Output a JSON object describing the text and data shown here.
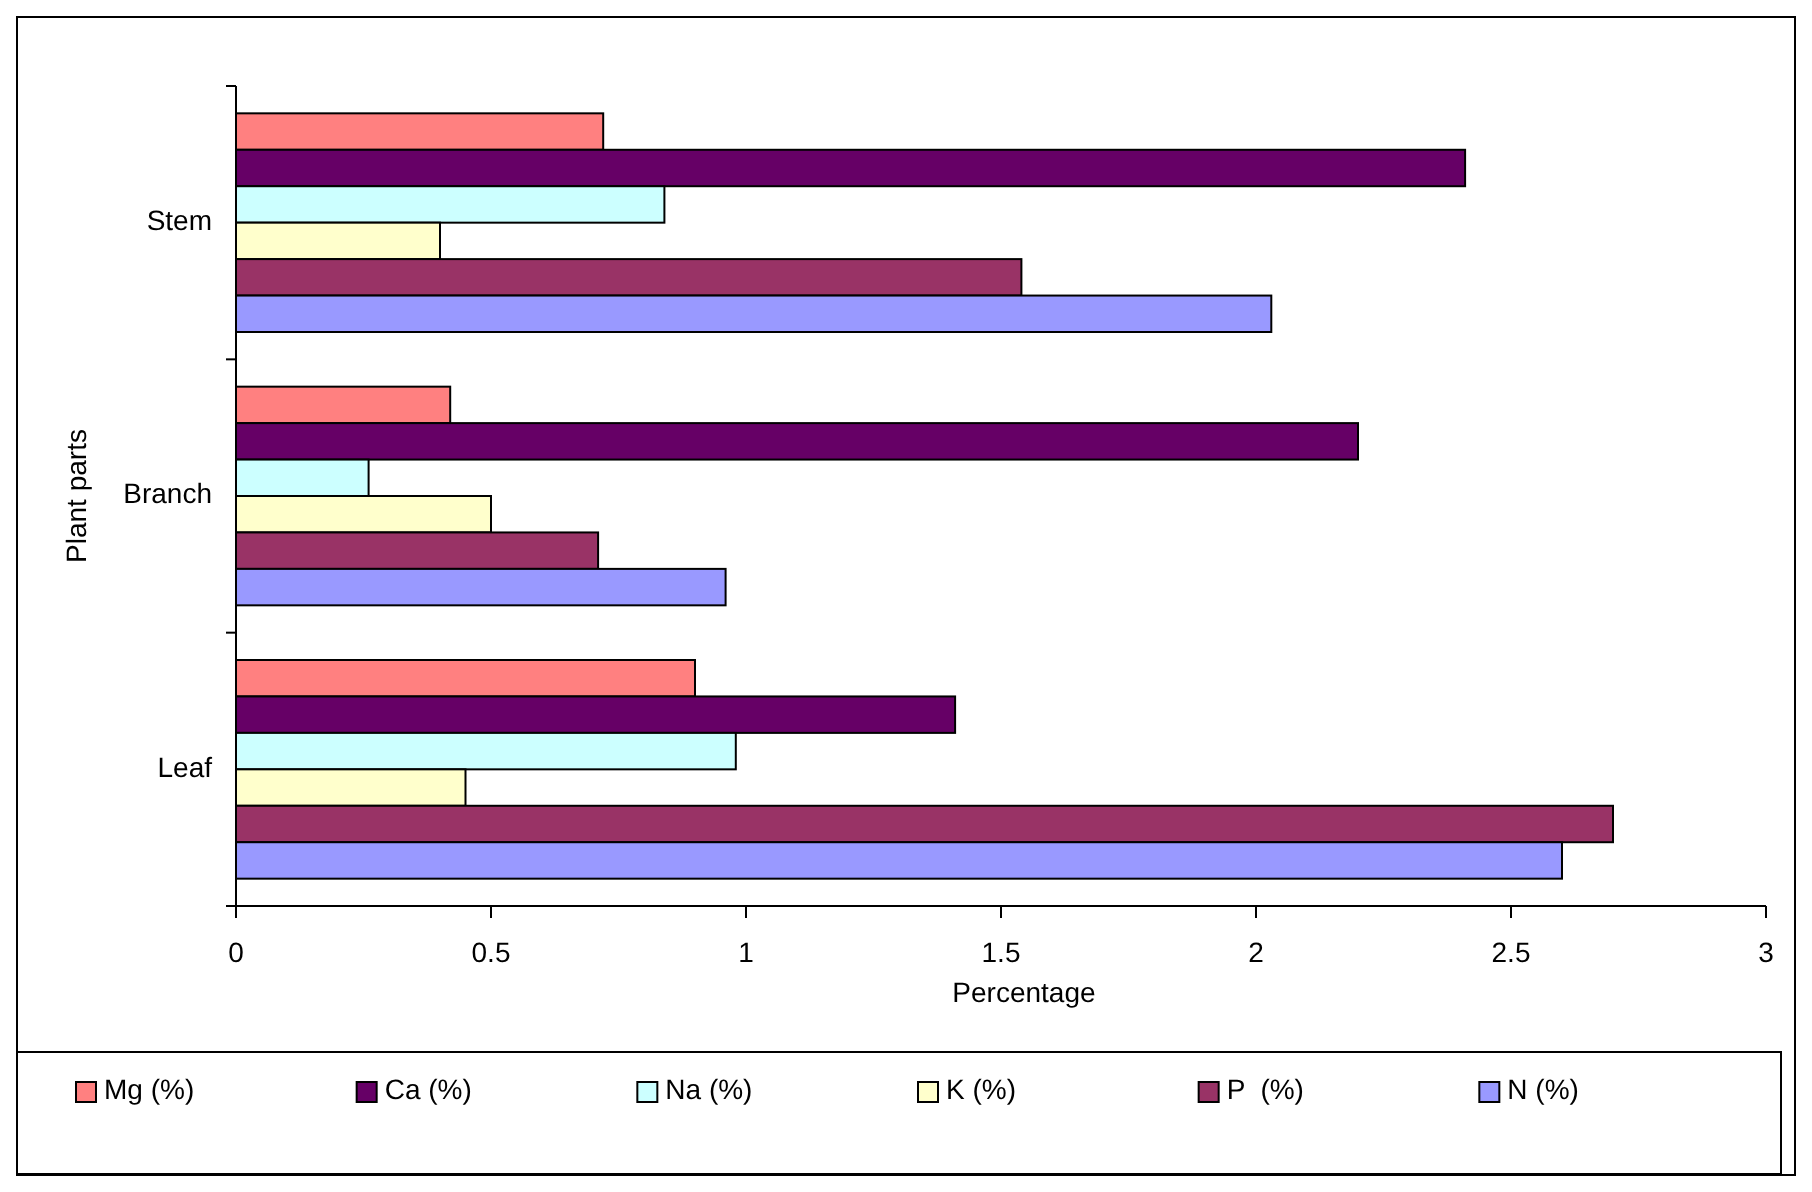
{
  "chart_data": {
    "type": "bar",
    "orientation": "horizontal",
    "xlabel": "Percentage",
    "ylabel": "Plant parts",
    "categories": [
      "Stem",
      "Branch",
      "Leaf"
    ],
    "series": [
      {
        "name": "Mg (%)",
        "color": "#ff8080",
        "values": [
          0.72,
          0.42,
          0.9
        ]
      },
      {
        "name": "Ca (%)",
        "color": "#660066",
        "values": [
          2.41,
          2.2,
          1.41
        ]
      },
      {
        "name": "Na (%)",
        "color": "#ccffff",
        "values": [
          0.84,
          0.26,
          0.98
        ]
      },
      {
        "name": "K (%)",
        "color": "#ffffcc",
        "values": [
          0.4,
          0.5,
          0.45
        ]
      },
      {
        "name": "P  (%)",
        "color": "#993366",
        "values": [
          1.54,
          0.71,
          2.7
        ]
      },
      {
        "name": "N (%)",
        "color": "#9999ff",
        "values": [
          2.03,
          0.96,
          2.6
        ]
      }
    ],
    "xlim": [
      0,
      3
    ],
    "xticks": [
      0,
      0.5,
      1,
      1.5,
      2,
      2.5,
      3
    ],
    "grid": false,
    "legend": "bottom"
  }
}
